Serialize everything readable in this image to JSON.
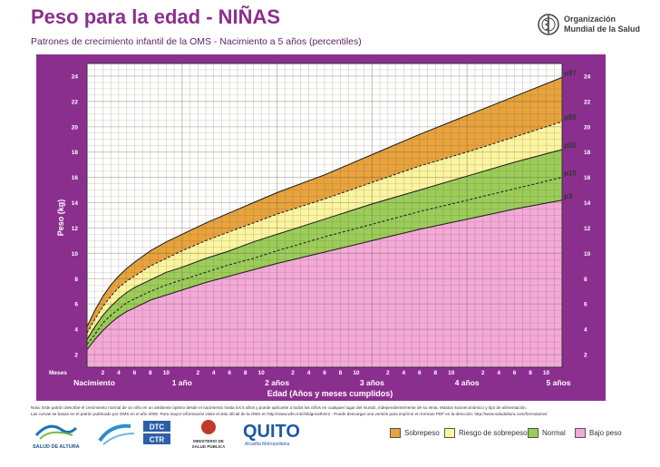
{
  "header": {
    "title": "Peso para la edad - NIÑAS",
    "subtitle": "Patrones de crecimiento infantil de la OMS - Nacimiento a 5 años (percentiles)",
    "who_line1": "Organización",
    "who_line2": "Mundial de la Salud"
  },
  "note": {
    "line1": "Nota: Este patrón describe el crecimiento normal de un niño en un ambiente óptimo desde el nacimiento hasta los 5 años y puede aplicarse a todos los niños en cualquier lugar del mundo, independientemente de su etnia, estatus socioeconómico y tipo de alimentación.",
    "line2": "Las curvas se basan en el patrón publicado por OMS en el año 2006. Para mayor información visite el sitio oficial de la OMS en http://www.who.int/childgrowth/en/ - Puede descargar una versión para imprimir en formato PDF en la dirección: http://www.saludaltura.com/formularios/"
  },
  "logos": {
    "salud_altura": "SALUD DE ALTURA",
    "dtc_1": "DTC",
    "dtc_2": "CTR",
    "ministerio_1": "MINISTERIO DE",
    "ministerio_2": "SALUD PÚBLICA",
    "quito": "QUITO",
    "quito_sub": "Alcaldía Metropolitana"
  },
  "legend": [
    {
      "label": "Sobrepeso",
      "color": "#e8a33d"
    },
    {
      "label": "Riesgo de sobrepeso",
      "color": "#fbf5a0"
    },
    {
      "label": "Normal",
      "color": "#9ccd5a"
    },
    {
      "label": "Bajo peso",
      "color": "#f4a9d8"
    }
  ],
  "chart_data": {
    "type": "line",
    "frame_color": "#8b2f8f",
    "ylabel": "Peso (kg)",
    "xlabel": "Edad (Años y meses cumplidos)",
    "xlim": [
      0,
      60
    ],
    "ylim": [
      1,
      25
    ],
    "y_ticks": [
      2,
      4,
      6,
      8,
      10,
      12,
      14,
      16,
      18,
      20,
      22,
      24
    ],
    "months_label": "Meses",
    "month_ticks": [
      {
        "x": 2,
        "label": "2"
      },
      {
        "x": 4,
        "label": "4"
      },
      {
        "x": 6,
        "label": "6"
      },
      {
        "x": 8,
        "label": "8"
      },
      {
        "x": 10,
        "label": "10"
      },
      {
        "x": 14,
        "label": "2"
      },
      {
        "x": 16,
        "label": "4"
      },
      {
        "x": 18,
        "label": "6"
      },
      {
        "x": 20,
        "label": "8"
      },
      {
        "x": 22,
        "label": "10"
      },
      {
        "x": 26,
        "label": "2"
      },
      {
        "x": 28,
        "label": "4"
      },
      {
        "x": 30,
        "label": "6"
      },
      {
        "x": 32,
        "label": "8"
      },
      {
        "x": 34,
        "label": "10"
      },
      {
        "x": 38,
        "label": "2"
      },
      {
        "x": 40,
        "label": "4"
      },
      {
        "x": 42,
        "label": "6"
      },
      {
        "x": 44,
        "label": "8"
      },
      {
        "x": 46,
        "label": "10"
      },
      {
        "x": 50,
        "label": "2"
      },
      {
        "x": 52,
        "label": "4"
      },
      {
        "x": 54,
        "label": "6"
      },
      {
        "x": 56,
        "label": "8"
      },
      {
        "x": 58,
        "label": "10"
      }
    ],
    "year_labels": [
      {
        "x": 0,
        "label": "Nacimiento"
      },
      {
        "x": 12,
        "label": "1 año"
      },
      {
        "x": 24,
        "label": "2 años"
      },
      {
        "x": 36,
        "label": "3 años"
      },
      {
        "x": 48,
        "label": "4 años"
      },
      {
        "x": 60,
        "label": "5 años"
      }
    ],
    "x": [
      0,
      1,
      2,
      3,
      4,
      5,
      6,
      8,
      10,
      12,
      15,
      18,
      21,
      24,
      30,
      36,
      42,
      48,
      54,
      60
    ],
    "series": [
      {
        "name": "p97",
        "values": [
          4.2,
          5.5,
          6.6,
          7.5,
          8.2,
          8.8,
          9.3,
          10.2,
          10.9,
          11.5,
          12.4,
          13.2,
          14.0,
          14.8,
          16.2,
          17.8,
          19.4,
          20.9,
          22.4,
          23.9
        ]
      },
      {
        "name": "p85",
        "values": [
          3.7,
          4.8,
          5.8,
          6.6,
          7.3,
          7.8,
          8.2,
          9.0,
          9.6,
          10.2,
          11.0,
          11.7,
          12.4,
          13.1,
          14.3,
          15.6,
          16.9,
          18.0,
          19.2,
          20.4
        ]
      },
      {
        "name": "p50",
        "values": [
          3.2,
          4.2,
          5.1,
          5.8,
          6.4,
          6.9,
          7.3,
          7.9,
          8.5,
          8.9,
          9.6,
          10.2,
          10.9,
          11.5,
          12.7,
          13.9,
          15.0,
          16.1,
          17.2,
          18.2
        ]
      },
      {
        "name": "p15",
        "values": [
          2.8,
          3.6,
          4.5,
          5.1,
          5.6,
          6.1,
          6.4,
          7.0,
          7.5,
          7.9,
          8.5,
          9.1,
          9.6,
          10.2,
          11.3,
          12.3,
          13.3,
          14.2,
          15.1,
          16.0
        ]
      },
      {
        "name": "p3",
        "values": [
          2.4,
          3.2,
          3.9,
          4.5,
          5.0,
          5.4,
          5.7,
          6.3,
          6.7,
          7.1,
          7.7,
          8.2,
          8.7,
          9.2,
          10.1,
          11.0,
          11.9,
          12.7,
          13.5,
          14.2
        ]
      }
    ],
    "zone_colors": {
      "above_p97": "#ffffff",
      "p85_p97": "#e8a33d",
      "p50_p85": "#fbf5a0",
      "p15_p50": "#9ccd5a",
      "p3_p15": "#9ccd5a",
      "below_p3": "#f4a9d8"
    },
    "grid": true
  }
}
